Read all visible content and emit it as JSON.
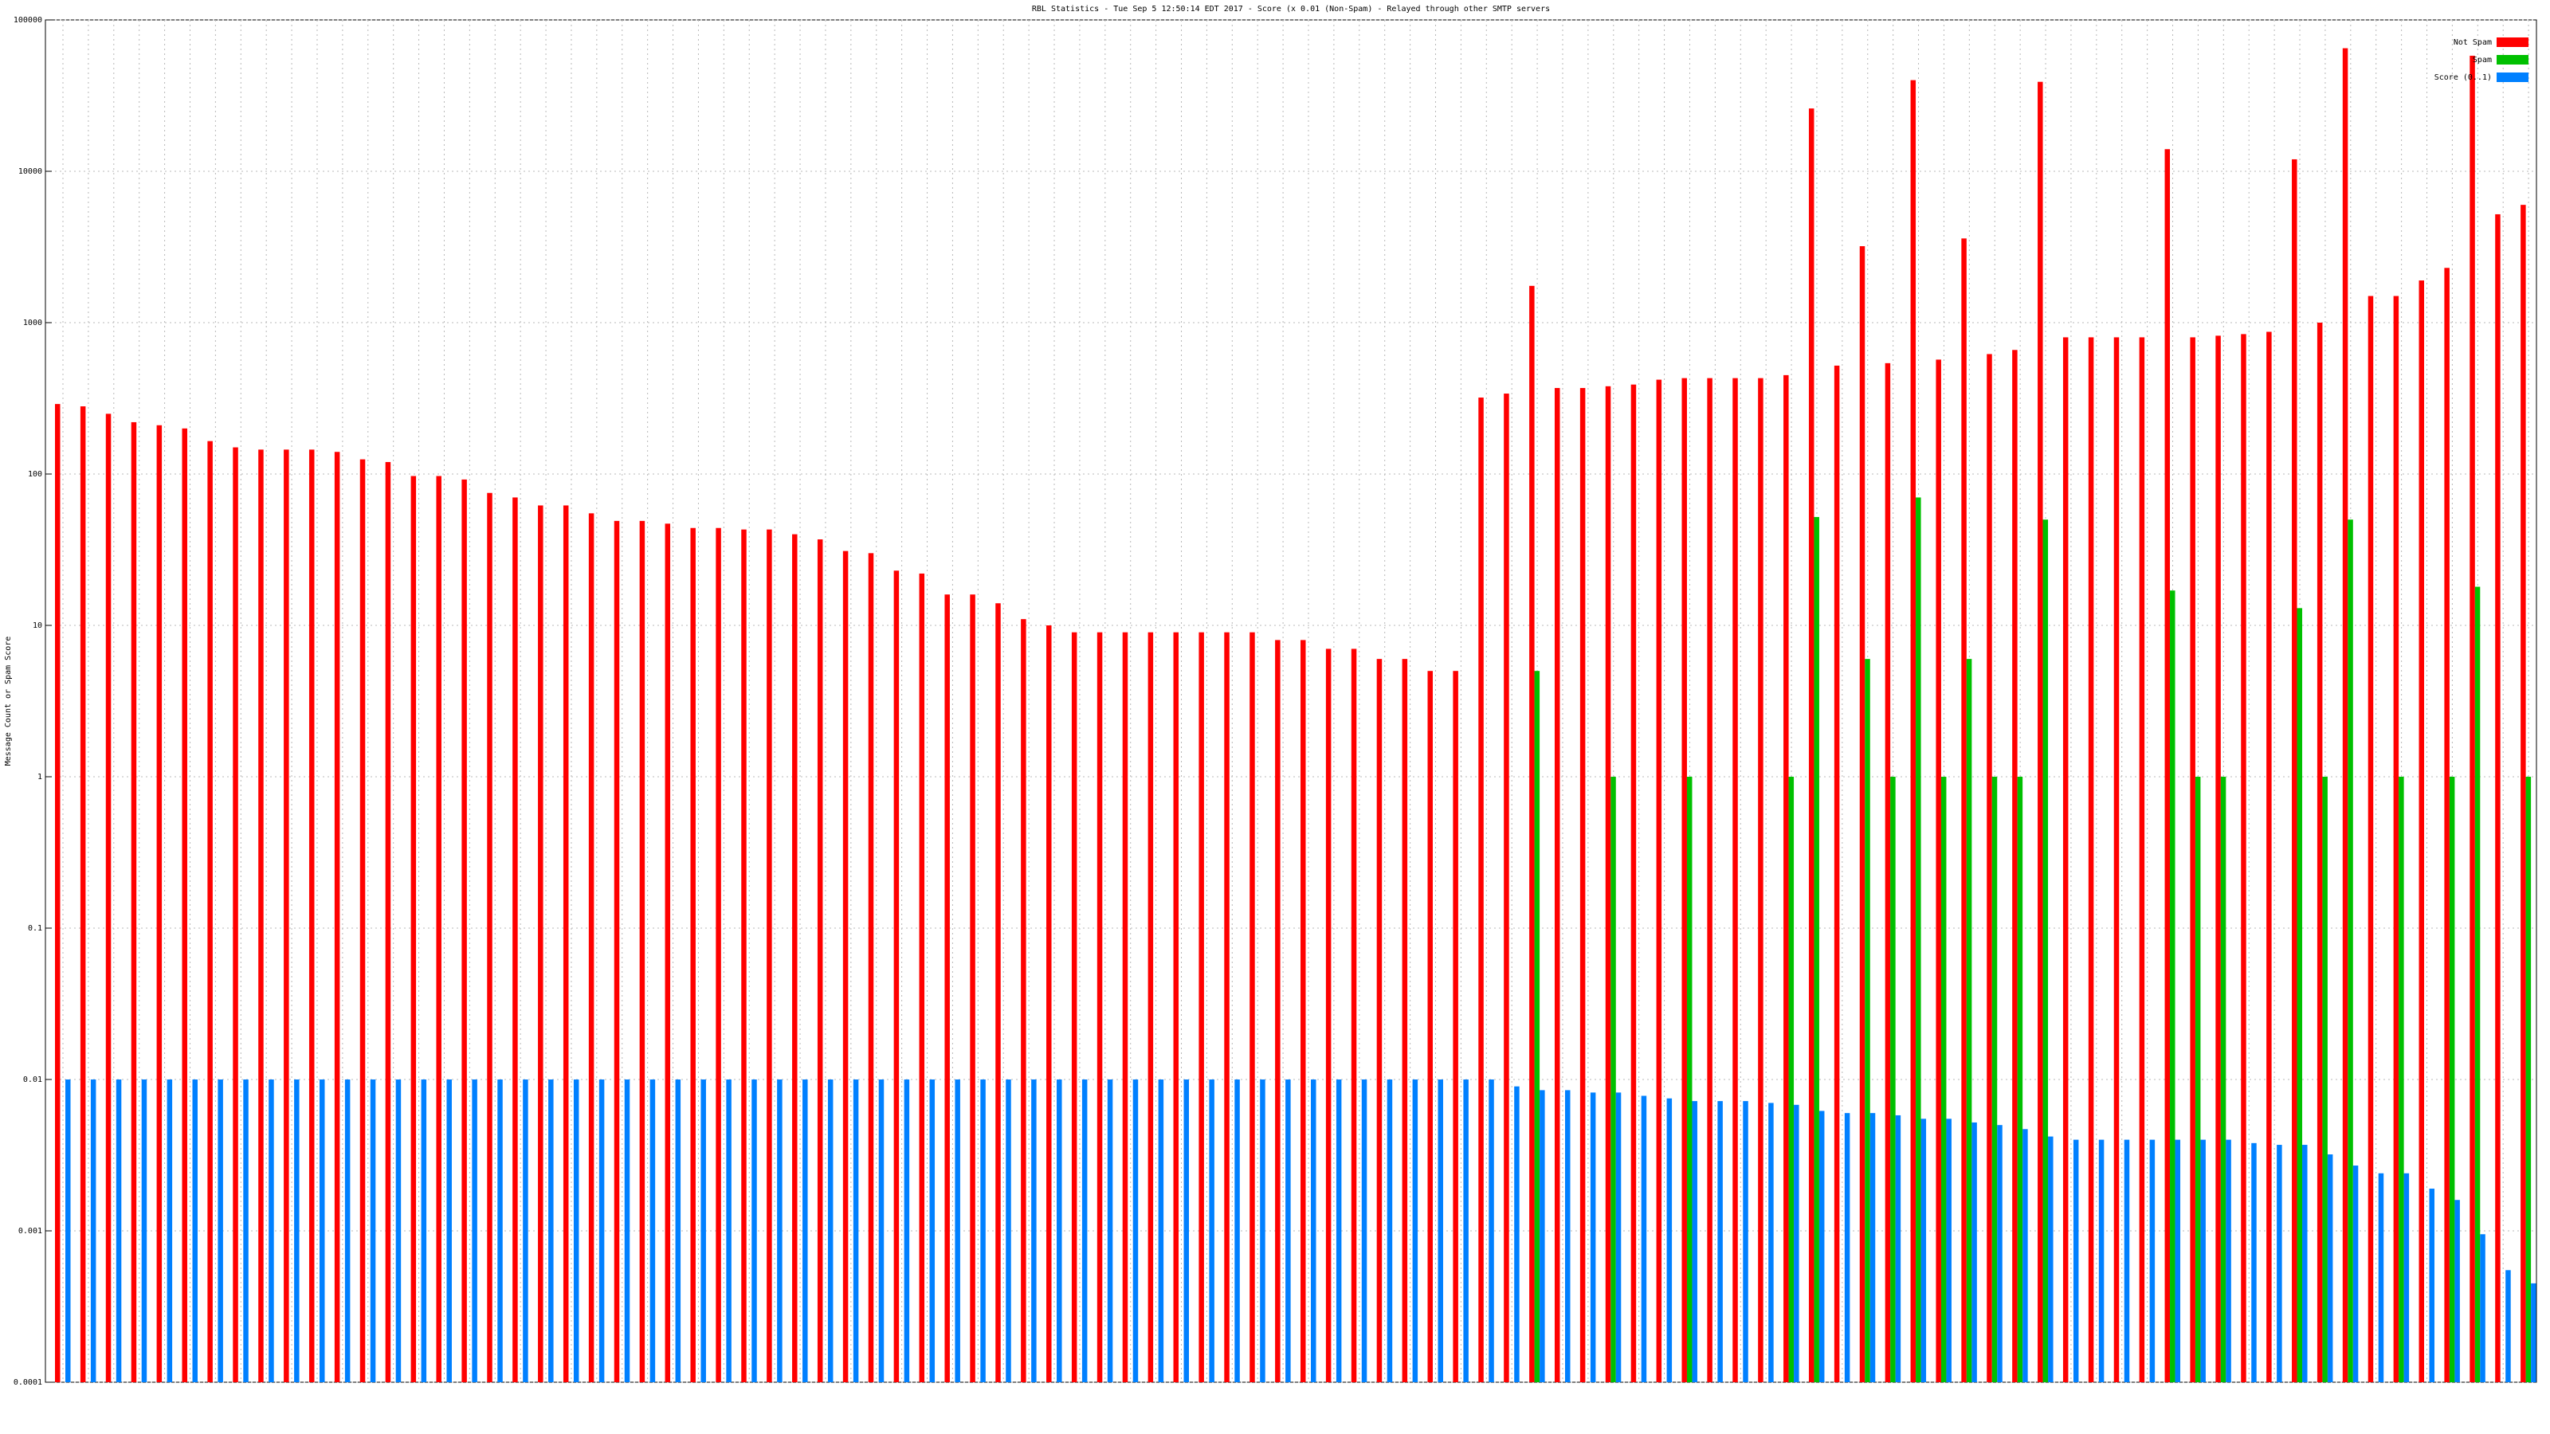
{
  "chart_data": {
    "type": "bar",
    "title": "RBL Statistics - Tue Sep  5 12:50:14 EDT 2017 - Score (x 0.01 (Non-Spam) - Relayed through other SMTP servers",
    "y_label": "Message Count or Spam Score",
    "log_scale": true,
    "grid": true,
    "legend": "upper right",
    "ylim": [
      0.0001,
      100000
    ],
    "yticks": [
      0.0001,
      0.001,
      0.01,
      0.1,
      1,
      10,
      100,
      1000,
      10000,
      100000
    ],
    "categories": [
      null,
      null,
      null,
      null,
      null,
      null,
      null,
      null,
      null,
      null,
      null,
      null,
      null,
      null,
      null,
      null,
      null,
      null,
      null,
      null,
      null,
      null,
      null,
      null,
      null,
      null,
      null,
      null,
      null,
      null,
      null,
      null,
      null,
      null,
      null,
      null,
      null,
      null,
      null,
      null,
      null,
      null,
      null,
      null,
      null,
      null,
      null,
      null,
      null,
      null,
      null,
      null,
      null,
      null,
      null,
      null,
      null,
      null,
      null,
      null,
      null,
      null,
      null,
      null,
      null,
      null,
      null,
      null,
      null,
      null,
      null,
      null,
      null,
      null,
      null,
      null,
      null,
      null,
      null,
      null,
      null,
      null,
      null,
      null,
      null,
      null,
      null,
      null,
      null,
      null,
      null,
      null,
      null,
      null,
      null,
      null,
      null,
      null
    ],
    "series": [
      {
        "name": "Not Spam",
        "color": "#ff0000",
        "values": [
          290,
          280,
          250,
          220,
          210,
          200,
          165,
          150,
          145,
          145,
          145,
          140,
          125,
          120,
          97,
          97,
          92,
          75,
          70,
          62,
          62,
          55,
          49,
          49,
          47,
          44,
          44,
          43,
          43,
          40,
          37,
          31,
          30,
          23,
          22,
          16,
          16,
          14,
          11,
          10,
          9,
          9,
          9,
          9,
          9,
          9,
          9,
          9,
          8,
          8,
          7,
          7,
          6,
          6,
          5,
          5,
          320,
          340,
          1750,
          370,
          370,
          380,
          390,
          420,
          430,
          430,
          430,
          430,
          450,
          26000,
          520,
          3200,
          540,
          40000,
          570,
          3600,
          620,
          660,
          39000,
          800,
          800,
          800,
          800,
          14000,
          800,
          820,
          840,
          870,
          12000,
          1000,
          65000,
          1500,
          1500,
          1900,
          2300,
          58000,
          5200,
          6000
        ]
      },
      {
        "name": "Spam",
        "color": "#00c000",
        "values": [
          null,
          null,
          null,
          null,
          null,
          null,
          null,
          null,
          null,
          null,
          null,
          null,
          null,
          null,
          null,
          null,
          null,
          null,
          null,
          null,
          null,
          null,
          null,
          null,
          null,
          null,
          null,
          null,
          null,
          null,
          null,
          null,
          null,
          null,
          null,
          null,
          null,
          null,
          null,
          null,
          null,
          null,
          null,
          null,
          null,
          null,
          null,
          null,
          null,
          null,
          null,
          null,
          null,
          null,
          null,
          null,
          null,
          null,
          5,
          null,
          null,
          1,
          null,
          null,
          1,
          null,
          null,
          null,
          1,
          52,
          null,
          6,
          1,
          70,
          1,
          6,
          1,
          1,
          50,
          null,
          null,
          null,
          null,
          17,
          1,
          1,
          null,
          null,
          13,
          1,
          50,
          null,
          1,
          null,
          1,
          18,
          null,
          1
        ]
      },
      {
        "name": "Score (0..1)",
        "color": "#0080ff",
        "values": [
          0.01,
          0.01,
          0.01,
          0.01,
          0.01,
          0.01,
          0.01,
          0.01,
          0.01,
          0.01,
          0.01,
          0.01,
          0.01,
          0.01,
          0.01,
          0.01,
          0.01,
          0.01,
          0.01,
          0.01,
          0.01,
          0.01,
          0.01,
          0.01,
          0.01,
          0.01,
          0.01,
          0.01,
          0.01,
          0.01,
          0.01,
          0.01,
          0.01,
          0.01,
          0.01,
          0.01,
          0.01,
          0.01,
          0.01,
          0.01,
          0.01,
          0.01,
          0.01,
          0.01,
          0.01,
          0.01,
          0.01,
          0.01,
          0.01,
          0.01,
          0.01,
          0.01,
          0.01,
          0.01,
          0.01,
          0.01,
          0.01,
          0.009,
          0.0085,
          0.0085,
          0.0082,
          0.0082,
          0.0078,
          0.0075,
          0.0072,
          0.0072,
          0.0072,
          0.007,
          0.0068,
          0.0062,
          0.006,
          0.006,
          0.0058,
          0.0055,
          0.0055,
          0.0052,
          0.005,
          0.0047,
          0.0042,
          0.004,
          0.004,
          0.004,
          0.004,
          0.004,
          0.004,
          0.004,
          0.0038,
          0.0037,
          0.0037,
          0.0032,
          0.0027,
          0.0024,
          0.0024,
          0.0019,
          0.0016,
          0.00095,
          0.00055,
          0.00045
        ]
      }
    ]
  }
}
